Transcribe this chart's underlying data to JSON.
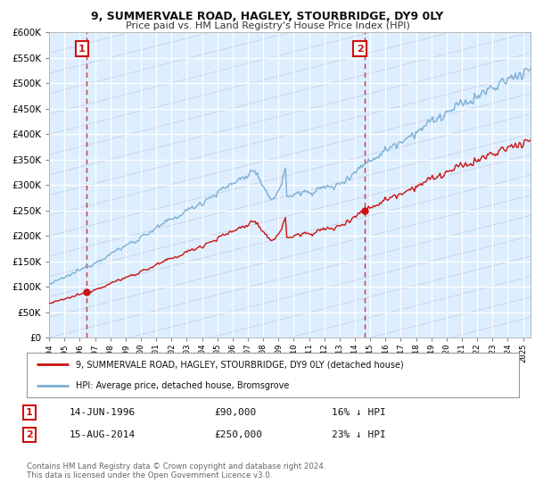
{
  "title": "9, SUMMERVALE ROAD, HAGLEY, STOURBRIDGE, DY9 0LY",
  "subtitle": "Price paid vs. HM Land Registry's House Price Index (HPI)",
  "legend_line1": "9, SUMMERVALE ROAD, HAGLEY, STOURBRIDGE, DY9 0LY (detached house)",
  "legend_line2": "HPI: Average price, detached house, Bromsgrove",
  "annotation1_date": "14-JUN-1996",
  "annotation1_price": "£90,000",
  "annotation1_hpi": "16% ↓ HPI",
  "annotation2_date": "15-AUG-2014",
  "annotation2_price": "£250,000",
  "annotation2_hpi": "23% ↓ HPI",
  "footer": "Contains HM Land Registry data © Crown copyright and database right 2024.\nThis data is licensed under the Open Government Licence v3.0.",
  "hpi_color": "#7bafd4",
  "price_color": "#cc1111",
  "dashed_line_color": "#cc1111",
  "background_color": "#ffffff",
  "plot_bg_color": "#ddeeff",
  "grid_color": "#ffffff",
  "ylim": [
    0,
    600000
  ],
  "yticks": [
    0,
    50000,
    100000,
    150000,
    200000,
    250000,
    300000,
    350000,
    400000,
    450000,
    500000,
    550000,
    600000
  ],
  "sale1_year": 1996.45,
  "sale1_price": 90000,
  "sale2_year": 2014.62,
  "sale2_price": 250000,
  "xmin": 1994.0,
  "xmax": 2025.5
}
